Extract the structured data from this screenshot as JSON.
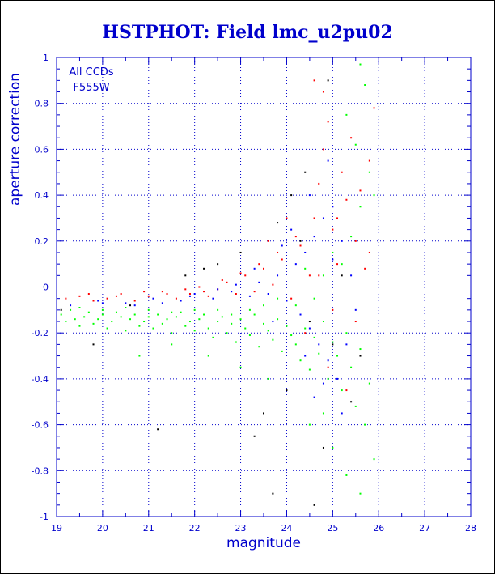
{
  "chart_data": {
    "type": "scatter",
    "title": "HSTPHOT: Field lmc_u2pu02",
    "xlabel": "magnitude",
    "ylabel": "aperture correction",
    "xlim": [
      19,
      28
    ],
    "ylim": [
      -1,
      1
    ],
    "x_ticks": [
      "19",
      "20",
      "21",
      "22",
      "23",
      "24",
      "25",
      "26",
      "27",
      "28"
    ],
    "y_ticks": [
      "-1",
      "-0.8",
      "-0.6",
      "-0.4",
      "-0.2",
      "0",
      "0.2",
      "0.4",
      "0.6",
      "0.8",
      "1"
    ],
    "grid": true,
    "annotations": [
      "All CCDs",
      "F555W"
    ],
    "colors": {
      "title": "#0000cc",
      "axis": "#0000cc",
      "grid": "#0000cc",
      "series_black": "#000000",
      "series_red": "#ff0000",
      "series_blue": "#0000ff",
      "series_green": "#00ff00"
    },
    "series": [
      {
        "color": "green",
        "points": [
          [
            19.1,
            -0.12
          ],
          [
            19.2,
            -0.15
          ],
          [
            19.3,
            -0.1
          ],
          [
            19.4,
            -0.14
          ],
          [
            19.5,
            -0.17
          ],
          [
            19.6,
            -0.13
          ],
          [
            19.7,
            -0.11
          ],
          [
            19.8,
            -0.16
          ],
          [
            19.9,
            -0.14
          ],
          [
            20.0,
            -0.12
          ],
          [
            20.1,
            -0.18
          ],
          [
            20.2,
            -0.15
          ],
          [
            20.3,
            -0.11
          ],
          [
            20.4,
            -0.13
          ],
          [
            20.5,
            -0.19
          ],
          [
            20.6,
            -0.14
          ],
          [
            20.7,
            -0.12
          ],
          [
            20.8,
            -0.17
          ],
          [
            20.9,
            -0.15
          ],
          [
            21.0,
            -0.13
          ],
          [
            21.1,
            -0.18
          ],
          [
            21.2,
            -0.12
          ],
          [
            21.3,
            -0.16
          ],
          [
            21.4,
            -0.14
          ],
          [
            21.5,
            -0.2
          ],
          [
            21.6,
            -0.13
          ],
          [
            21.7,
            -0.11
          ],
          [
            21.8,
            -0.17
          ],
          [
            21.9,
            -0.15
          ],
          [
            22.0,
            -0.19
          ],
          [
            22.1,
            -0.14
          ],
          [
            22.2,
            -0.12
          ],
          [
            22.3,
            -0.18
          ],
          [
            22.4,
            -0.22
          ],
          [
            22.5,
            -0.15
          ],
          [
            22.6,
            -0.13
          ],
          [
            22.7,
            -0.2
          ],
          [
            22.8,
            -0.16
          ],
          [
            22.9,
            -0.24
          ],
          [
            23.0,
            -0.14
          ],
          [
            23.1,
            -0.18
          ],
          [
            23.2,
            -0.21
          ],
          [
            23.3,
            -0.12
          ],
          [
            23.4,
            -0.26
          ],
          [
            23.5,
            -0.16
          ],
          [
            23.6,
            -0.19
          ],
          [
            23.7,
            -0.23
          ],
          [
            23.8,
            -0.14
          ],
          [
            23.9,
            -0.28
          ],
          [
            24.0,
            -0.17
          ],
          [
            24.1,
            -0.21
          ],
          [
            24.2,
            -0.25
          ],
          [
            24.3,
            -0.32
          ],
          [
            24.4,
            -0.18
          ],
          [
            24.5,
            -0.36
          ],
          [
            24.6,
            -0.22
          ],
          [
            24.7,
            -0.29
          ],
          [
            24.8,
            -0.15
          ],
          [
            24.9,
            -0.4
          ],
          [
            25.0,
            -0.24
          ],
          [
            25.1,
            -0.3
          ],
          [
            25.2,
            -0.45
          ],
          [
            25.3,
            -0.2
          ],
          [
            25.4,
            -0.35
          ],
          [
            25.5,
            -0.52
          ],
          [
            25.6,
            -0.27
          ],
          [
            25.7,
            -0.6
          ],
          [
            25.8,
            -0.42
          ],
          [
            25.9,
            -0.75
          ],
          [
            25.2,
            0.1
          ],
          [
            25.4,
            0.22
          ],
          [
            25.6,
            0.35
          ],
          [
            25.8,
            0.5
          ],
          [
            25.5,
            0.62
          ],
          [
            25.3,
            0.75
          ],
          [
            25.7,
            0.88
          ],
          [
            25.6,
            0.97
          ],
          [
            25.9,
            0.4
          ],
          [
            24.8,
            0.05
          ],
          [
            25.0,
            0.15
          ],
          [
            24.6,
            -0.05
          ],
          [
            24.4,
            0.08
          ],
          [
            24.2,
            -0.08
          ],
          [
            23.8,
            -0.05
          ],
          [
            23.5,
            -0.08
          ],
          [
            23.2,
            -0.1
          ],
          [
            22.8,
            -0.12
          ],
          [
            22.5,
            -0.1
          ],
          [
            22.0,
            -0.1
          ],
          [
            21.5,
            -0.11
          ],
          [
            21.0,
            -0.1
          ],
          [
            20.5,
            -0.09
          ],
          [
            20.0,
            -0.1
          ],
          [
            19.5,
            -0.09
          ],
          [
            24.5,
            -0.6
          ],
          [
            25.0,
            -0.7
          ],
          [
            25.3,
            -0.82
          ],
          [
            24.8,
            -0.55
          ],
          [
            25.6,
            -0.9
          ],
          [
            21.5,
            -0.25
          ],
          [
            20.8,
            -0.3
          ],
          [
            22.3,
            -0.3
          ],
          [
            23.0,
            -0.35
          ],
          [
            23.6,
            -0.4
          ]
        ]
      },
      {
        "color": "red",
        "points": [
          [
            19.2,
            -0.05
          ],
          [
            19.5,
            -0.04
          ],
          [
            19.8,
            -0.06
          ],
          [
            20.1,
            -0.05
          ],
          [
            20.4,
            -0.03
          ],
          [
            20.7,
            -0.06
          ],
          [
            21.0,
            -0.04
          ],
          [
            21.3,
            -0.02
          ],
          [
            21.6,
            -0.05
          ],
          [
            21.9,
            -0.03
          ],
          [
            22.1,
            0.0
          ],
          [
            22.3,
            -0.04
          ],
          [
            22.5,
            -0.01
          ],
          [
            22.7,
            0.02
          ],
          [
            22.9,
            -0.03
          ],
          [
            23.1,
            0.05
          ],
          [
            23.3,
            -0.02
          ],
          [
            23.5,
            0.08
          ],
          [
            23.7,
            0.01
          ],
          [
            23.9,
            0.12
          ],
          [
            24.1,
            -0.05
          ],
          [
            24.3,
            0.18
          ],
          [
            24.5,
            0.05
          ],
          [
            24.6,
            0.3
          ],
          [
            24.7,
            0.45
          ],
          [
            24.8,
            0.6
          ],
          [
            24.9,
            0.72
          ],
          [
            25.0,
            0.25
          ],
          [
            25.1,
            0.1
          ],
          [
            25.2,
            0.5
          ],
          [
            25.3,
            0.38
          ],
          [
            25.4,
            0.65
          ],
          [
            25.5,
            0.2
          ],
          [
            25.6,
            0.42
          ],
          [
            25.7,
            0.08
          ],
          [
            25.8,
            0.55
          ],
          [
            25.9,
            0.78
          ],
          [
            24.6,
            0.9
          ],
          [
            24.8,
            0.85
          ],
          [
            25.0,
            -0.1
          ],
          [
            24.2,
            0.22
          ],
          [
            23.8,
            0.15
          ],
          [
            23.4,
            0.1
          ],
          [
            23.0,
            0.06
          ],
          [
            22.6,
            0.03
          ],
          [
            22.2,
            -0.02
          ],
          [
            21.8,
            -0.01
          ],
          [
            21.4,
            -0.03
          ],
          [
            20.9,
            -0.02
          ],
          [
            20.3,
            -0.04
          ],
          [
            19.7,
            -0.03
          ],
          [
            24.4,
            -0.2
          ],
          [
            24.9,
            -0.35
          ],
          [
            25.3,
            -0.45
          ],
          [
            25.5,
            -0.15
          ],
          [
            24.0,
            0.3
          ],
          [
            23.6,
            0.2
          ],
          [
            24.7,
            0.05
          ],
          [
            25.1,
            0.3
          ],
          [
            25.8,
            0.15
          ]
        ]
      },
      {
        "color": "blue",
        "points": [
          [
            19.3,
            -0.08
          ],
          [
            19.9,
            -0.06
          ],
          [
            20.5,
            -0.07
          ],
          [
            21.1,
            -0.05
          ],
          [
            21.7,
            -0.06
          ],
          [
            22.0,
            -0.03
          ],
          [
            22.4,
            -0.05
          ],
          [
            22.8,
            -0.02
          ],
          [
            23.2,
            -0.04
          ],
          [
            23.4,
            0.02
          ],
          [
            23.6,
            -0.03
          ],
          [
            23.8,
            0.05
          ],
          [
            24.0,
            -0.06
          ],
          [
            24.2,
            0.1
          ],
          [
            24.3,
            -0.12
          ],
          [
            24.4,
            0.15
          ],
          [
            24.5,
            -0.18
          ],
          [
            24.6,
            0.22
          ],
          [
            24.7,
            -0.25
          ],
          [
            24.8,
            0.3
          ],
          [
            24.9,
            -0.32
          ],
          [
            25.0,
            0.35
          ],
          [
            25.1,
            -0.4
          ],
          [
            25.2,
            0.2
          ],
          [
            25.3,
            -0.25
          ],
          [
            25.4,
            0.05
          ],
          [
            25.5,
            -0.1
          ],
          [
            24.1,
            0.25
          ],
          [
            23.9,
            0.18
          ],
          [
            24.5,
            0.4
          ],
          [
            24.9,
            0.55
          ],
          [
            25.2,
            -0.55
          ],
          [
            24.6,
            -0.48
          ],
          [
            23.7,
            -0.15
          ],
          [
            23.3,
            0.08
          ],
          [
            22.9,
            0.01
          ],
          [
            22.5,
            -0.01
          ],
          [
            21.9,
            -0.04
          ],
          [
            21.3,
            -0.07
          ],
          [
            20.7,
            -0.08
          ],
          [
            20.0,
            -0.07
          ],
          [
            24.4,
            -0.3
          ],
          [
            24.8,
            -0.42
          ],
          [
            25.0,
            0.12
          ]
        ]
      },
      {
        "color": "black",
        "points": [
          [
            19.1,
            -0.1
          ],
          [
            19.8,
            -0.25
          ],
          [
            20.6,
            -0.08
          ],
          [
            21.2,
            -0.62
          ],
          [
            21.8,
            0.05
          ],
          [
            22.5,
            0.1
          ],
          [
            23.0,
            0.15
          ],
          [
            23.3,
            -0.65
          ],
          [
            23.5,
            -0.55
          ],
          [
            23.7,
            -0.9
          ],
          [
            24.0,
            -0.45
          ],
          [
            24.1,
            0.4
          ],
          [
            24.3,
            0.2
          ],
          [
            24.5,
            -0.15
          ],
          [
            24.6,
            -0.95
          ],
          [
            24.8,
            -0.7
          ],
          [
            24.9,
            0.9
          ],
          [
            25.0,
            -0.25
          ],
          [
            25.2,
            0.05
          ],
          [
            25.4,
            -0.5
          ],
          [
            25.6,
            -0.3
          ],
          [
            23.8,
            0.28
          ],
          [
            22.2,
            0.08
          ],
          [
            24.4,
            0.5
          ]
        ]
      }
    ]
  }
}
